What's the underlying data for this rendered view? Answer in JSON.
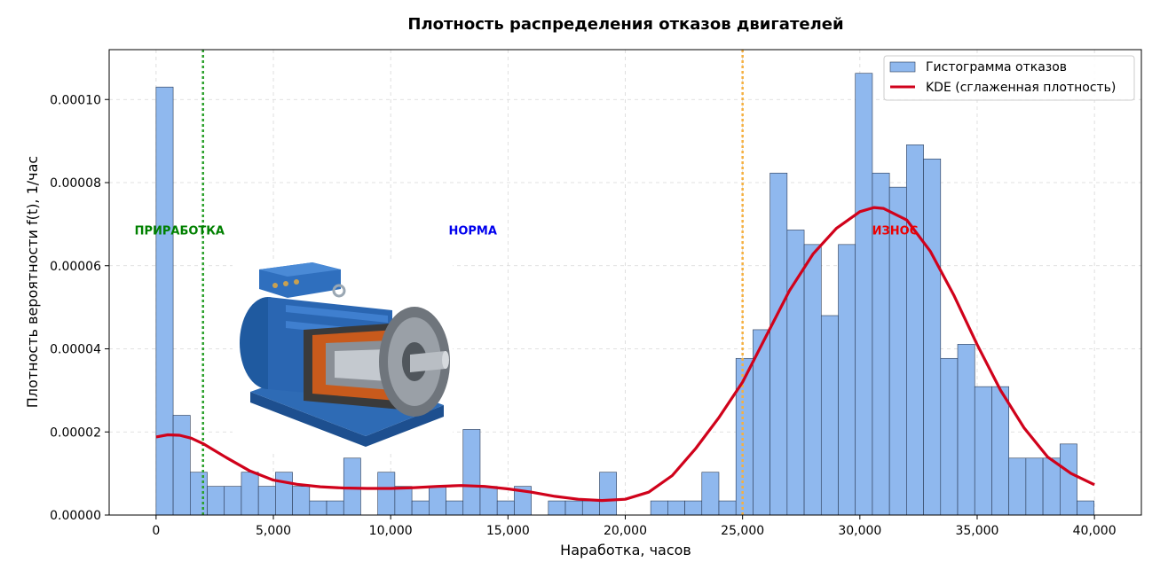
{
  "chart_data": {
    "type": "bar",
    "title": "Плотность распределения отказов двигателей",
    "xlabel": "Наработка, часов",
    "ylabel": "Плотность вероятности f(t), 1/час",
    "xlim": [
      -2000,
      42000
    ],
    "ylim": [
      0,
      0.000112
    ],
    "x_ticks": [
      0,
      5000,
      10000,
      15000,
      20000,
      25000,
      30000,
      35000,
      40000
    ],
    "x_tick_labels": [
      "0",
      "5,000",
      "10,000",
      "15,000",
      "20,000",
      "25,000",
      "30,000",
      "35,000",
      "40,000"
    ],
    "y_ticks": [
      0,
      2e-05,
      4e-05,
      6e-05,
      8e-05,
      0.0001
    ],
    "y_tick_labels": [
      "0.00000",
      "0.00002",
      "0.00004",
      "0.00006",
      "0.00008",
      "0.00010"
    ],
    "grid": true,
    "legend_position": "top-right",
    "histogram": {
      "name": "Гистограмма отказов",
      "color": "#8fb8ee",
      "edge_color": "#2a3a55",
      "bin_start": 0,
      "bin_width": 727,
      "values": [
        0.000103,
        2.4e-05,
        1.03e-05,
        6.9e-06,
        6.9e-06,
        1.03e-05,
        6.9e-06,
        1.03e-05,
        6.9e-06,
        3.4e-06,
        3.4e-06,
        1.37e-05,
        0,
        1.03e-05,
        6.9e-06,
        3.4e-06,
        6.9e-06,
        3.4e-06,
        2.06e-05,
        6.9e-06,
        3.4e-06,
        6.9e-06,
        0,
        3.4e-06,
        3.4e-06,
        3.4e-06,
        1.03e-05,
        0,
        0,
        3.4e-06,
        3.4e-06,
        3.4e-06,
        1.03e-05,
        3.4e-06,
        3.77e-05,
        4.46e-05,
        8.23e-05,
        6.86e-05,
        6.51e-05,
        4.8e-05,
        6.51e-05,
        0.0001063,
        8.23e-05,
        7.89e-05,
        8.91e-05,
        8.57e-05,
        3.77e-05,
        4.11e-05,
        3.09e-05,
        3.09e-05,
        1.37e-05,
        1.37e-05,
        1.37e-05,
        1.71e-05,
        3.4e-06
      ]
    },
    "kde": {
      "name": "KDE (сглаженная плотность)",
      "color": "#d0021b",
      "x": [
        0,
        500,
        1000,
        1500,
        2000,
        3000,
        4000,
        5000,
        6000,
        7000,
        8000,
        9000,
        10000,
        11000,
        12000,
        13000,
        14000,
        15000,
        16000,
        17000,
        18000,
        19000,
        20000,
        21000,
        22000,
        23000,
        24000,
        25000,
        26000,
        27000,
        28000,
        29000,
        30000,
        30600,
        31000,
        32000,
        33000,
        34000,
        35000,
        36000,
        37000,
        38000,
        39000,
        40000
      ],
      "y": [
        1.88e-05,
        1.93e-05,
        1.92e-05,
        1.85e-05,
        1.72e-05,
        1.38e-05,
        1.06e-05,
        8.4e-06,
        7.4e-06,
        6.8e-06,
        6.5e-06,
        6.4e-06,
        6.4e-06,
        6.6e-06,
        6.9e-06,
        7.1e-06,
        6.9e-06,
        6.3e-06,
        5.5e-06,
        4.5e-06,
        3.8e-06,
        3.5e-06,
        3.8e-06,
        5.5e-06,
        9.5e-06,
        1.6e-05,
        2.35e-05,
        3.2e-05,
        4.3e-05,
        5.4e-05,
        6.28e-05,
        6.9e-05,
        7.3e-05,
        7.4e-05,
        7.38e-05,
        7.1e-05,
        6.35e-05,
        5.3e-05,
        4.1e-05,
        3e-05,
        2.1e-05,
        1.4e-05,
        1e-05,
        7.3e-06
      ]
    },
    "vlines": [
      {
        "x": 2000,
        "color": "#2ca02c"
      },
      {
        "x": 25000,
        "color": "#f5b041"
      }
    ],
    "zone_labels": [
      {
        "text": "ПРИРАБОТКА",
        "x": 1000,
        "y": 6.75e-05,
        "color": "#008000"
      },
      {
        "text": "НОРМА",
        "x": 13500,
        "y": 6.75e-05,
        "color": "#0000ee"
      },
      {
        "text": "ИЗНОС",
        "x": 31500,
        "y": 6.75e-05,
        "color": "#ee0000"
      }
    ]
  }
}
